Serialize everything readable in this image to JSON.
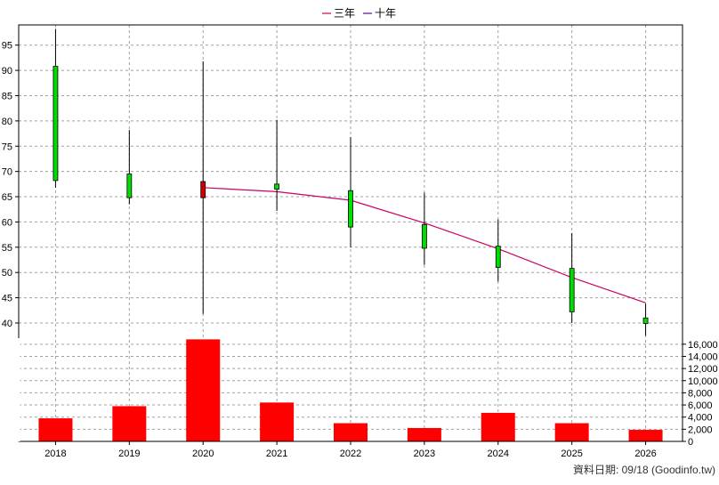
{
  "chart_data": {
    "type": "candlestick-with-volume",
    "legend": [
      {
        "label": "三年",
        "color": "#cc0066"
      },
      {
        "label": "十年",
        "color": "#660099"
      }
    ],
    "legend_position": "top-center",
    "grid": true,
    "categories": [
      "2018",
      "2019",
      "2020",
      "2021",
      "2022",
      "2023",
      "2024",
      "2025",
      "2026"
    ],
    "price_axis": {
      "min": 37,
      "max": 99,
      "ticks": [
        40,
        45,
        50,
        55,
        60,
        65,
        70,
        75,
        80,
        85,
        90,
        95
      ]
    },
    "volume_axis": {
      "min": 0,
      "max": 17000,
      "ticks": [
        0,
        2000,
        4000,
        6000,
        8000,
        10000,
        12000,
        14000,
        16000
      ],
      "tick_labels": [
        "0",
        "2,000",
        "4,000",
        "6,000",
        "8,000",
        "10,000",
        "12,000",
        "14,000",
        "16,000"
      ]
    },
    "candles": [
      {
        "x": "2018",
        "open": 68.2,
        "close": 90.8,
        "high": 98.2,
        "low": 66.8
      },
      {
        "x": "2019",
        "open": 64.8,
        "close": 69.5,
        "high": 78.2,
        "low": 63.5
      },
      {
        "x": "2020",
        "open": 68.0,
        "close": 64.8,
        "high": 91.8,
        "low": 41.8
      },
      {
        "x": "2021",
        "open": 66.5,
        "close": 67.5,
        "high": 80.2,
        "low": 62.2
      },
      {
        "x": "2022",
        "open": 59.0,
        "close": 66.2,
        "high": 76.8,
        "low": 55.0
      },
      {
        "x": "2023",
        "open": 54.8,
        "close": 59.5,
        "high": 65.8,
        "low": 51.5
      },
      {
        "x": "2024",
        "open": 51.0,
        "close": 55.2,
        "high": 60.5,
        "low": 48.2
      },
      {
        "x": "2025",
        "open": 42.2,
        "close": 50.8,
        "high": 57.8,
        "low": 40.0
      },
      {
        "x": "2026",
        "open": 39.9,
        "close": 41.0,
        "high": 43.8,
        "low": 37.5
      }
    ],
    "three_year_line": [
      {
        "x": "2020",
        "y": 66.8
      },
      {
        "x": "2021",
        "y": 66.0
      },
      {
        "x": "2022",
        "y": 64.3
      },
      {
        "x": "2023",
        "y": 59.8
      },
      {
        "x": "2024",
        "y": 54.7
      },
      {
        "x": "2025",
        "y": 49.0
      },
      {
        "x": "2026",
        "y": 44.0
      }
    ],
    "volume": [
      3800,
      5800,
      16800,
      6400,
      3000,
      2200,
      4700,
      3000,
      1900
    ],
    "colors": {
      "up": "#00dd00",
      "down": "#cc0000",
      "volume": "#ff0000",
      "three_year": "#cc0066",
      "ten_year": "#660099",
      "grid": "#a0a0a0"
    }
  },
  "footer": {
    "source": "資料日期: 09/18  (Goodinfo.tw)"
  }
}
